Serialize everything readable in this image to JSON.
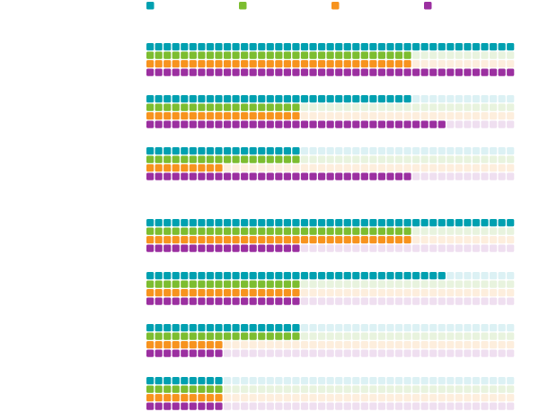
{
  "chart_data": {
    "type": "waffle",
    "title": "",
    "cells_per_row": 43,
    "series": [
      {
        "name": "",
        "color": "#00a0b0",
        "empty_color": "#dcf1f4"
      },
      {
        "name": "",
        "color": "#7cbd30",
        "empty_color": "#e8f3de"
      },
      {
        "name": "",
        "color": "#f7931e",
        "empty_color": "#fdeedd"
      },
      {
        "name": "",
        "color": "#9b2fa0",
        "empty_color": "#efdff0"
      }
    ],
    "groups": [
      {
        "label": "",
        "values": [
          43,
          31,
          31,
          43
        ]
      },
      {
        "label": "",
        "values": [
          31,
          18,
          18,
          35
        ]
      },
      {
        "label": "",
        "values": [
          18,
          18,
          9,
          31
        ]
      },
      {
        "label": "",
        "values": [
          43,
          31,
          31,
          18
        ]
      },
      {
        "label": "",
        "values": [
          35,
          18,
          18,
          18
        ]
      },
      {
        "label": "",
        "values": [
          18,
          18,
          9,
          9
        ]
      },
      {
        "label": "",
        "values": [
          9,
          9,
          9,
          9
        ]
      }
    ]
  }
}
